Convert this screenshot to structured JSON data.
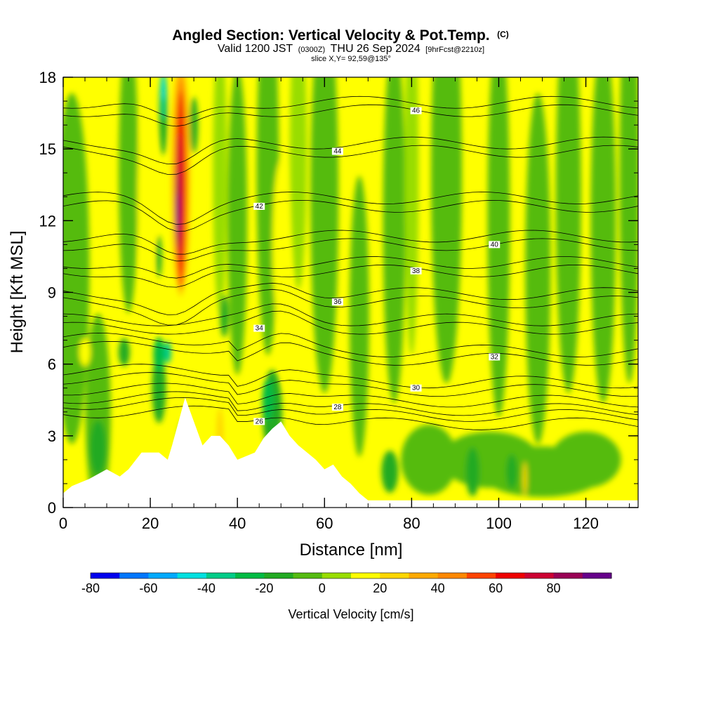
{
  "title": {
    "main": "Angled Section: Vertical Velocity & Pot.Temp.",
    "main_unit": "(C)",
    "valid_pre": "Valid 1200 JST",
    "valid_z": "(0300Z)",
    "valid_post": "THU 26 Sep 2024",
    "fcst": "[9hrFcst@2210z]",
    "slice": "slice X,Y= 92,59@135°"
  },
  "chart_data": {
    "type": "heatmap",
    "title": "Angled Section: Vertical Velocity & Pot.Temp. (C)",
    "xlabel": "Distance [nm]",
    "ylabel": "Height [Kft MSL]",
    "xlim": [
      0,
      132
    ],
    "ylim": [
      0,
      18
    ],
    "xticks": [
      "0",
      "20",
      "40",
      "60",
      "80",
      "100",
      "120"
    ],
    "yticks": [
      "0",
      "3",
      "6",
      "9",
      "12",
      "15",
      "18"
    ],
    "colorbar": {
      "label": "Vertical Velocity [cm/s]",
      "ticks": [
        "-80",
        "-60",
        "-40",
        "-20",
        "0",
        "20",
        "40",
        "60",
        "80"
      ],
      "levels": [
        -80,
        -70,
        -60,
        -50,
        -40,
        -30,
        -20,
        -10,
        0,
        10,
        20,
        30,
        40,
        50,
        60,
        70,
        80,
        90
      ],
      "colors": [
        "#0000ee",
        "#0077ff",
        "#00aaff",
        "#00e0e0",
        "#00cc88",
        "#00bb44",
        "#22aa22",
        "#55bb11",
        "#99dd00",
        "#ffff00",
        "#ffd700",
        "#ffaa00",
        "#ff8800",
        "#ff4400",
        "#ee0000",
        "#cc0033",
        "#990055",
        "#66008a"
      ]
    },
    "terrain_kft": [
      [
        0,
        0.6
      ],
      [
        2,
        0.9
      ],
      [
        6,
        1.2
      ],
      [
        10,
        1.6
      ],
      [
        13,
        1.3
      ],
      [
        15,
        1.6
      ],
      [
        18,
        2.3
      ],
      [
        22,
        2.3
      ],
      [
        24,
        2.0
      ],
      [
        25,
        2.6
      ],
      [
        28,
        4.6
      ],
      [
        30,
        3.6
      ],
      [
        32,
        2.6
      ],
      [
        34,
        3.0
      ],
      [
        36,
        3.0
      ],
      [
        38,
        2.6
      ],
      [
        40,
        2.0
      ],
      [
        44,
        2.3
      ],
      [
        46,
        2.9
      ],
      [
        48,
        3.3
      ],
      [
        50,
        3.6
      ],
      [
        52,
        3.0
      ],
      [
        54,
        2.6
      ],
      [
        56,
        2.3
      ],
      [
        58,
        2.0
      ],
      [
        60,
        1.6
      ],
      [
        62,
        1.8
      ],
      [
        64,
        1.3
      ],
      [
        66,
        1.0
      ],
      [
        68,
        0.6
      ],
      [
        70,
        0.3
      ],
      [
        132,
        0.3
      ]
    ],
    "theta_contours": [
      {
        "label": "26",
        "y": 3.6
      },
      {
        "label": "28",
        "y": 4.2
      },
      {
        "label": "30",
        "y": 5.0
      },
      {
        "label": "32",
        "y": 6.3
      },
      {
        "label": "34",
        "y": 7.5
      },
      {
        "label": "36",
        "y": 8.6
      },
      {
        "label": "38",
        "y": 9.9
      },
      {
        "label": "40",
        "y": 11.0
      },
      {
        "label": "42",
        "y": 12.6
      },
      {
        "label": "44",
        "y": 14.9
      },
      {
        "label": "46",
        "y": 16.6
      }
    ]
  }
}
